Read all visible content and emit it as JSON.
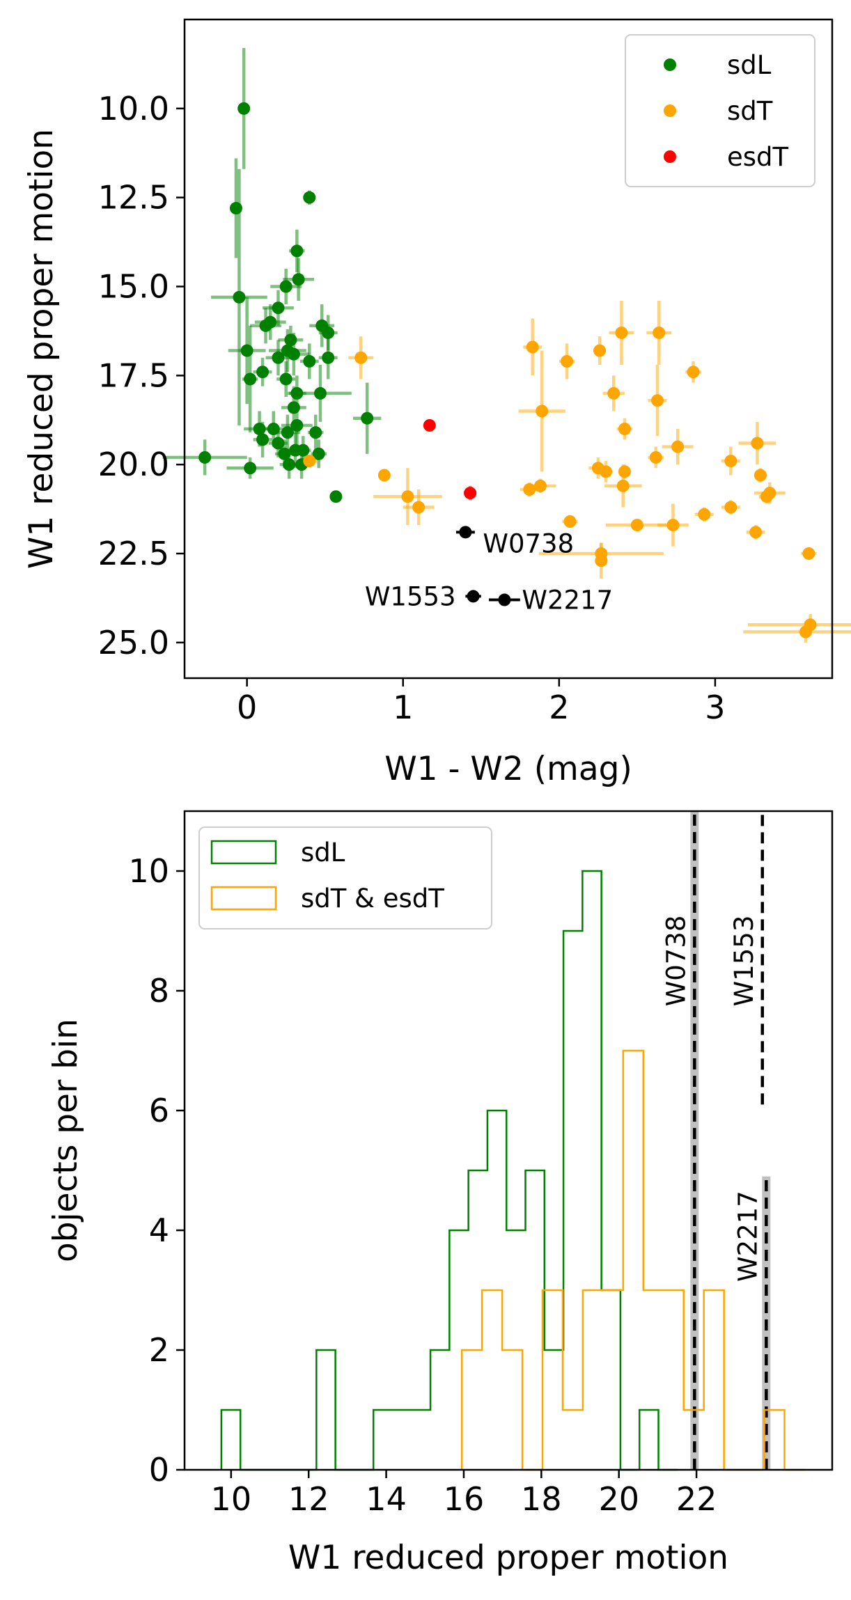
{
  "chart_data": [
    {
      "type": "scatter",
      "xlabel": "W1 - W2 (mag)",
      "ylabel": "W1 reduced proper motion",
      "xlim": [
        -0.4,
        3.75
      ],
      "ylim": [
        26.0,
        7.5
      ],
      "y_inverted": true,
      "xticks": [
        "0",
        "1",
        "2",
        "3"
      ],
      "yticks": [
        "10.0",
        "12.5",
        "15.0",
        "17.5",
        "20.0",
        "22.5",
        "25.0"
      ],
      "legend": {
        "placement": "top-right",
        "entries": [
          "sdL",
          "sdT",
          "esdT"
        ]
      },
      "colors": {
        "sdL": "#008000",
        "sdT": "#ffa500",
        "esdT": "#ff0000",
        "labeled": "#000000"
      },
      "series": [
        {
          "name": "sdL",
          "points": [
            {
              "x": -0.02,
              "y": 10.0,
              "xerr": 0.03,
              "yerr": 1.7
            },
            {
              "x": -0.07,
              "y": 12.8,
              "xerr": 0.02,
              "yerr": 1.4
            },
            {
              "x": 0.4,
              "y": 12.5,
              "xerr": 0.04,
              "yerr": 0.2
            },
            {
              "x": 0.32,
              "y": 14.0,
              "xerr": 0.05,
              "yerr": 0.6
            },
            {
              "x": -0.05,
              "y": 15.3,
              "xerr": 0.18,
              "yerr": 3.6
            },
            {
              "x": 0.33,
              "y": 14.8,
              "xerr": 0.1,
              "yerr": 0.6
            },
            {
              "x": 0.25,
              "y": 15.0,
              "xerr": 0.1,
              "yerr": 0.5
            },
            {
              "x": 0.2,
              "y": 15.6,
              "xerr": 0.1,
              "yerr": 0.5
            },
            {
              "x": 0.15,
              "y": 16.0,
              "xerr": 0.1,
              "yerr": 0.5
            },
            {
              "x": 0.12,
              "y": 16.1,
              "xerr": 0.1,
              "yerr": 0.5
            },
            {
              "x": 0.48,
              "y": 16.1,
              "xerr": 0.08,
              "yerr": 0.6
            },
            {
              "x": 0.52,
              "y": 16.3,
              "xerr": 0.06,
              "yerr": 0.5
            },
            {
              "x": 0.28,
              "y": 16.5,
              "xerr": 0.08,
              "yerr": 0.4
            },
            {
              "x": 0.26,
              "y": 16.8,
              "xerr": 0.12,
              "yerr": 0.6
            },
            {
              "x": 0.0,
              "y": 16.8,
              "xerr": 0.12,
              "yerr": 1.5
            },
            {
              "x": 0.2,
              "y": 17.0,
              "xerr": 0.08,
              "yerr": 0.5
            },
            {
              "x": 0.3,
              "y": 16.9,
              "xerr": 0.1,
              "yerr": 0.6
            },
            {
              "x": 0.4,
              "y": 17.1,
              "xerr": 0.06,
              "yerr": 0.5
            },
            {
              "x": 0.52,
              "y": 17.0,
              "xerr": 0.06,
              "yerr": 0.6
            },
            {
              "x": 0.1,
              "y": 17.4,
              "xerr": 0.06,
              "yerr": 0.4
            },
            {
              "x": 0.02,
              "y": 17.6,
              "xerr": 0.05,
              "yerr": 1.5
            },
            {
              "x": 0.25,
              "y": 17.6,
              "xerr": 0.06,
              "yerr": 0.5
            },
            {
              "x": 0.32,
              "y": 18.0,
              "xerr": 0.06,
              "yerr": 0.5
            },
            {
              "x": 0.3,
              "y": 18.4,
              "xerr": 0.08,
              "yerr": 0.6
            },
            {
              "x": 0.47,
              "y": 18.0,
              "xerr": 0.2,
              "yerr": 0.8
            },
            {
              "x": 0.77,
              "y": 18.7,
              "xerr": 0.09,
              "yerr": 1.0
            },
            {
              "x": 0.08,
              "y": 19.0,
              "xerr": 0.1,
              "yerr": 0.5
            },
            {
              "x": 0.17,
              "y": 19.0,
              "xerr": 0.08,
              "yerr": 0.5
            },
            {
              "x": 0.26,
              "y": 19.1,
              "xerr": 0.08,
              "yerr": 0.5
            },
            {
              "x": 0.32,
              "y": 18.9,
              "xerr": 0.1,
              "yerr": 0.6
            },
            {
              "x": 0.44,
              "y": 19.1,
              "xerr": 0.05,
              "yerr": 0.5
            },
            {
              "x": 0.1,
              "y": 19.3,
              "xerr": 0.06,
              "yerr": 0.5
            },
            {
              "x": 0.2,
              "y": 19.4,
              "xerr": 0.06,
              "yerr": 0.4
            },
            {
              "x": 0.31,
              "y": 19.6,
              "xerr": 0.06,
              "yerr": 0.5
            },
            {
              "x": 0.36,
              "y": 19.6,
              "xerr": 0.05,
              "yerr": 0.4
            },
            {
              "x": 0.46,
              "y": 19.7,
              "xerr": 0.05,
              "yerr": 0.4
            },
            {
              "x": 0.24,
              "y": 19.7,
              "xerr": 0.06,
              "yerr": 0.4
            },
            {
              "x": -0.27,
              "y": 19.8,
              "xerr": 0.27,
              "yerr": 0.5
            },
            {
              "x": 0.02,
              "y": 20.1,
              "xerr": 0.15,
              "yerr": 0.3
            },
            {
              "x": 0.27,
              "y": 20.0,
              "xerr": 0.06,
              "yerr": 0.4
            },
            {
              "x": 0.35,
              "y": 20.0,
              "xerr": 0.05,
              "yerr": 0.4
            },
            {
              "x": 0.57,
              "y": 20.9,
              "xerr": 0.02,
              "yerr": 0.1
            }
          ]
        },
        {
          "name": "sdT",
          "points": [
            {
              "x": 0.73,
              "y": 17.0,
              "xerr": 0.08,
              "yerr": 0.6
            },
            {
              "x": 0.4,
              "y": 19.9,
              "xerr": 0.05,
              "yerr": 0.1
            },
            {
              "x": 0.88,
              "y": 20.3,
              "xerr": 0.02,
              "yerr": 0.1
            },
            {
              "x": 1.03,
              "y": 20.9,
              "xerr": 0.22,
              "yerr": 0.8
            },
            {
              "x": 1.1,
              "y": 21.2,
              "xerr": 0.1,
              "yerr": 0.5
            },
            {
              "x": 1.83,
              "y": 16.7,
              "xerr": 0.06,
              "yerr": 0.8
            },
            {
              "x": 2.05,
              "y": 17.1,
              "xerr": 0.05,
              "yerr": 0.5
            },
            {
              "x": 2.26,
              "y": 16.8,
              "xerr": 0.04,
              "yerr": 0.4
            },
            {
              "x": 2.4,
              "y": 16.3,
              "xerr": 0.08,
              "yerr": 0.9
            },
            {
              "x": 2.64,
              "y": 16.3,
              "xerr": 0.08,
              "yerr": 0.9
            },
            {
              "x": 2.86,
              "y": 17.4,
              "xerr": 0.05,
              "yerr": 0.3
            },
            {
              "x": 2.35,
              "y": 18.0,
              "xerr": 0.07,
              "yerr": 0.5
            },
            {
              "x": 2.63,
              "y": 18.2,
              "xerr": 0.06,
              "yerr": 1.0
            },
            {
              "x": 1.89,
              "y": 18.5,
              "xerr": 0.15,
              "yerr": 1.7
            },
            {
              "x": 2.42,
              "y": 19.0,
              "xerr": 0.05,
              "yerr": 0.3
            },
            {
              "x": 2.76,
              "y": 19.5,
              "xerr": 0.1,
              "yerr": 0.5
            },
            {
              "x": 2.62,
              "y": 19.8,
              "xerr": 0.05,
              "yerr": 0.3
            },
            {
              "x": 3.1,
              "y": 19.9,
              "xerr": 0.06,
              "yerr": 0.4
            },
            {
              "x": 3.27,
              "y": 19.4,
              "xerr": 0.12,
              "yerr": 0.6
            },
            {
              "x": 2.25,
              "y": 20.1,
              "xerr": 0.06,
              "yerr": 0.3
            },
            {
              "x": 2.3,
              "y": 20.2,
              "xerr": 0.04,
              "yerr": 0.3
            },
            {
              "x": 2.42,
              "y": 20.2,
              "xerr": 0.03,
              "yerr": 0.2
            },
            {
              "x": 3.29,
              "y": 20.3,
              "xerr": 0.03,
              "yerr": 0.2
            },
            {
              "x": 2.41,
              "y": 20.6,
              "xerr": 0.12,
              "yerr": 0.6
            },
            {
              "x": 1.88,
              "y": 20.6,
              "xerr": 0.1,
              "yerr": 0.2
            },
            {
              "x": 1.81,
              "y": 20.7,
              "xerr": 0.06,
              "yerr": 0.2
            },
            {
              "x": 3.35,
              "y": 20.8,
              "xerr": 0.1,
              "yerr": 0.3
            },
            {
              "x": 3.33,
              "y": 20.9,
              "xerr": 0.05,
              "yerr": 0.2
            },
            {
              "x": 3.1,
              "y": 21.2,
              "xerr": 0.06,
              "yerr": 0.2
            },
            {
              "x": 2.93,
              "y": 21.4,
              "xerr": 0.06,
              "yerr": 0.2
            },
            {
              "x": 2.07,
              "y": 21.6,
              "xerr": 0.05,
              "yerr": 0.1
            },
            {
              "x": 2.5,
              "y": 21.7,
              "xerr": 0.2,
              "yerr": 0.1
            },
            {
              "x": 2.73,
              "y": 21.7,
              "xerr": 0.1,
              "yerr": 0.6
            },
            {
              "x": 3.26,
              "y": 21.9,
              "xerr": 0.06,
              "yerr": 0.2
            },
            {
              "x": 2.27,
              "y": 22.5,
              "xerr": 0.4,
              "yerr": 0.3
            },
            {
              "x": 2.27,
              "y": 22.7,
              "xerr": 0.04,
              "yerr": 0.5
            },
            {
              "x": 3.6,
              "y": 22.5,
              "xerr": 0.05,
              "yerr": 0.1
            },
            {
              "x": 3.61,
              "y": 24.5,
              "xerr": 0.4,
              "yerr": 0.3
            },
            {
              "x": 3.58,
              "y": 24.7,
              "xerr": 0.4,
              "yerr": 0.3
            }
          ]
        },
        {
          "name": "esdT",
          "points": [
            {
              "x": 1.17,
              "y": 18.9,
              "xerr": 0.02,
              "yerr": 0.1
            },
            {
              "x": 1.43,
              "y": 20.8,
              "xerr": 0.04,
              "yerr": 0.2
            }
          ]
        },
        {
          "name": "labeled",
          "points": [
            {
              "x": 1.4,
              "y": 21.9,
              "xerr": 0.06,
              "yerr": 0.1,
              "label": "W0738"
            },
            {
              "x": 1.45,
              "y": 23.7,
              "xerr": 0.05,
              "yerr": 0.1,
              "label": "W1553"
            },
            {
              "x": 1.65,
              "y": 23.8,
              "xerr": 0.1,
              "yerr": 0.1,
              "label": "W2217"
            }
          ]
        }
      ]
    },
    {
      "type": "histogram",
      "xlabel": "W1 reduced proper motion",
      "ylabel": "objects per bin",
      "xlim": [
        8.8,
        25.5
      ],
      "ylim": [
        0,
        11
      ],
      "xticks": [
        "10",
        "12",
        "14",
        "16",
        "18",
        "20",
        "22"
      ],
      "yticks": [
        "0",
        "2",
        "4",
        "6",
        "8",
        "10"
      ],
      "legend": {
        "placement": "top-left",
        "entries": [
          "sdL",
          "sdT & esdT"
        ]
      },
      "colors": {
        "sdL": "#008000",
        "sdT & esdT": "#ffa500"
      },
      "series": [
        {
          "name": "sdL",
          "bins": [
            9.75,
            10.24,
            10.73,
            11.22,
            11.71,
            12.2,
            12.69,
            13.18,
            13.67,
            14.16,
            14.65,
            15.14,
            15.63,
            16.12,
            16.61,
            17.1,
            17.59,
            18.08,
            18.57,
            19.06,
            19.55,
            20.04,
            20.53,
            21.02,
            21.51
          ],
          "counts": [
            1,
            0,
            0,
            0,
            0,
            2,
            0,
            0,
            1,
            1,
            1,
            2,
            4,
            5,
            6,
            4,
            5,
            2,
            9,
            10,
            3,
            0,
            1,
            0
          ]
        },
        {
          "name": "sdT & esdT",
          "bins": [
            15.95,
            16.47,
            16.99,
            17.51,
            18.03,
            18.55,
            19.07,
            19.59,
            20.11,
            20.63,
            21.15,
            21.67,
            22.19,
            22.71,
            23.23,
            23.75,
            24.27,
            24.79
          ],
          "counts": [
            2,
            3,
            2,
            0,
            3,
            1,
            3,
            3,
            7,
            3,
            3,
            1,
            3,
            0,
            0,
            1,
            0
          ]
        }
      ],
      "reference_lines": [
        {
          "label": "W0738",
          "x": 21.95
        },
        {
          "label": "W1553",
          "x": 23.7
        },
        {
          "label": "W2217",
          "x": 23.8
        }
      ]
    }
  ]
}
